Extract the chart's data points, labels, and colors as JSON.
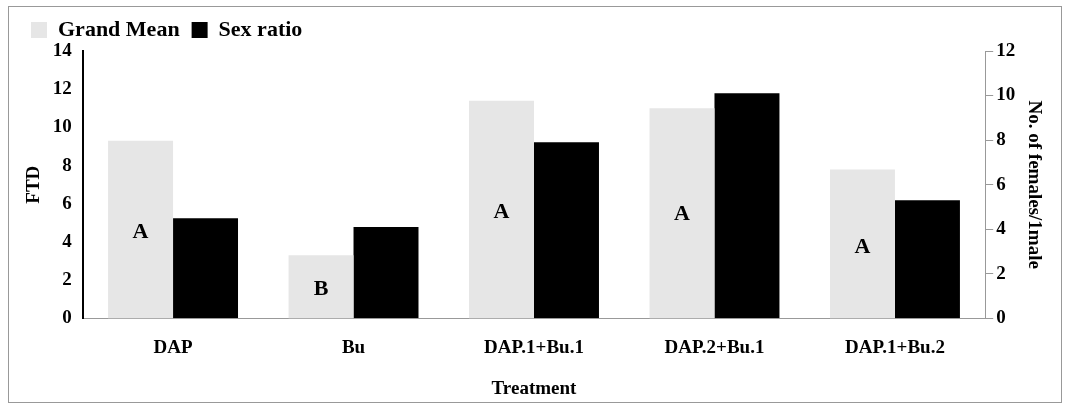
{
  "chart_data": {
    "type": "bar",
    "xlabel": "Treatment",
    "ylabel": "FTD",
    "y2label": "No. of females/1male",
    "categories": [
      "DAP",
      "Bu",
      "DAP.1+Bu.1",
      "DAP.2+Bu.1",
      "DAP.1+Bu.2"
    ],
    "series": [
      {
        "name": "Grand Mean",
        "color": "#e6e6e6",
        "values": [
          9.3,
          3.3,
          11.4,
          11.0,
          7.8
        ]
      },
      {
        "name": "Sex ratio",
        "color": "#000000",
        "axis": "y2",
        "values": [
          4.5,
          4.1,
          7.9,
          10.1,
          5.3
        ]
      }
    ],
    "ylim": [
      0,
      14
    ],
    "yticks": [
      0,
      2,
      4,
      6,
      8,
      10,
      12,
      14
    ],
    "y2lim": [
      0,
      12
    ],
    "y2ticks": [
      0,
      2,
      4,
      6,
      8,
      10,
      12
    ],
    "annotations": [
      {
        "text": "A",
        "x": "DAP",
        "y": 4.6
      },
      {
        "text": "B",
        "x": "Bu",
        "y": 1.6
      },
      {
        "text": "A",
        "x": "DAP.1+Bu.1",
        "y": 5.6
      },
      {
        "text": "A",
        "x": "DAP.2+Bu.1",
        "y": 5.5
      },
      {
        "text": "A",
        "x": "DAP.1+Bu.2",
        "y": 3.8
      }
    ],
    "grid": false,
    "legend": "top left"
  }
}
